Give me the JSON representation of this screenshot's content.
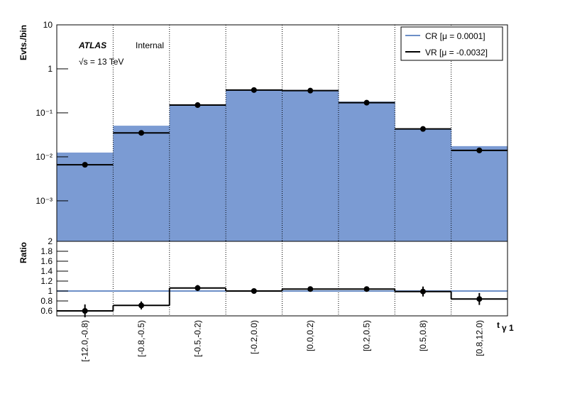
{
  "chart_data": [
    {
      "type": "hist",
      "y_label": "Evts./bin",
      "experiment": "ATLAS",
      "status": "Internal",
      "energy": "√s = 13 TeV",
      "categories": [
        "[-12.0,-0.8)",
        "[-0.8,-0.5)",
        "[-0.5,-0.2)",
        "[-0.2,0.0)",
        "[0.0,0.2)",
        "[0.2,0.5)",
        "[0.5,0.8)",
        "[0.8,12.0)"
      ],
      "log_y": true,
      "ylim": [
        0.00012,
        10
      ],
      "yticks": [
        {
          "value": 0.001,
          "label": "10⁻³"
        },
        {
          "value": 0.01,
          "label": "10⁻²"
        },
        {
          "value": 0.1,
          "label": "10⁻¹"
        },
        1,
        10
      ],
      "series": [
        {
          "name": "CR [μ = 0.0001]",
          "color": "#7b9bd3",
          "line_color": "#6c8fc7",
          "values": [
            0.0125,
            0.051,
            0.156,
            0.34,
            0.33,
            0.18,
            0.044,
            0.0175
          ]
        },
        {
          "name": "VR [μ = -0.0032]",
          "color": "#000000",
          "values": [
            0.0066,
            0.035,
            0.15,
            0.33,
            0.32,
            0.17,
            0.043,
            0.014
          ]
        }
      ]
    },
    {
      "type": "ratio",
      "y_label": "Ratio",
      "x_label": "t",
      "x_label_sub": "γ 1",
      "ylim": [
        0.5,
        2
      ],
      "yticks": [
        0.6,
        0.8,
        1,
        1.2,
        1.4,
        1.6,
        1.8,
        2
      ],
      "series": [
        {
          "color": "#6c8fc7",
          "values": [
            1,
            1,
            1,
            1,
            1,
            1,
            1,
            1
          ]
        },
        {
          "color": "#000000",
          "values": [
            0.6,
            0.71,
            1.06,
            1.0,
            1.04,
            1.04,
            0.99,
            0.84
          ],
          "errors": [
            0.13,
            0.08,
            0.06,
            0.03,
            0.04,
            0.05,
            0.1,
            0.12
          ]
        }
      ]
    }
  ]
}
